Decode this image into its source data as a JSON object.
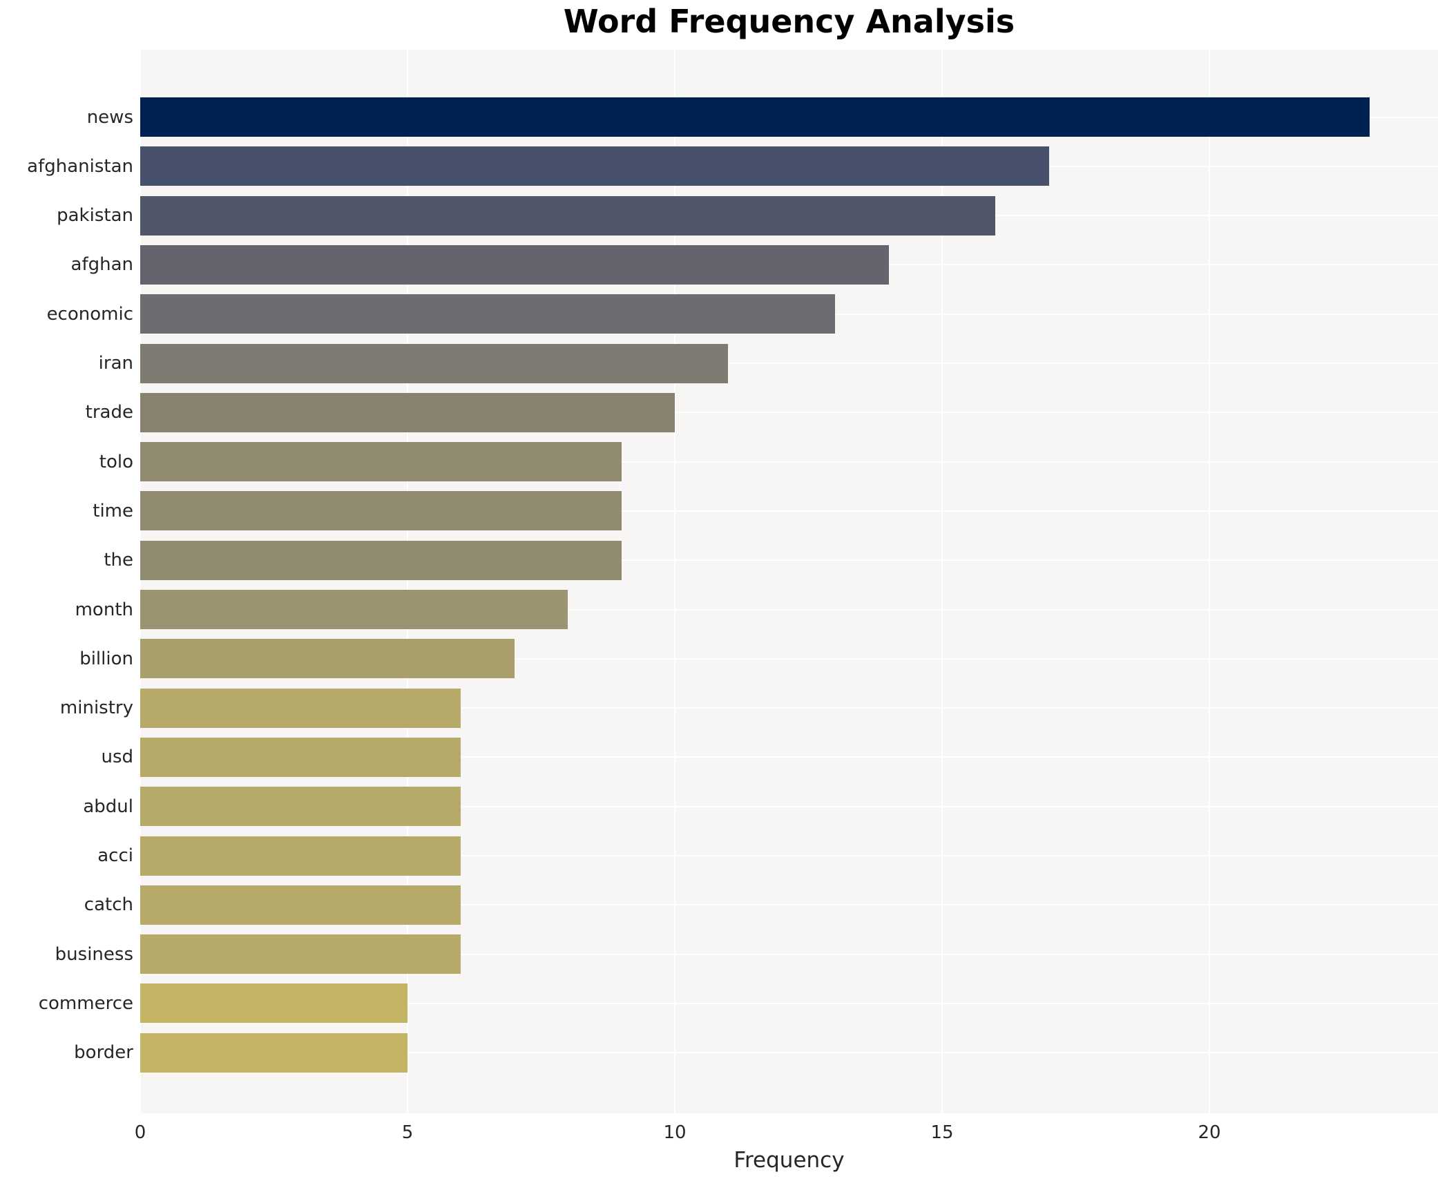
{
  "title": "Word Frequency Analysis",
  "xlabel": "Frequency",
  "colors": {
    "page_bg": "#ffffff",
    "plot_bg": "#f7f6f4",
    "grid": "#ffffff",
    "tick_text": "#262626",
    "title_text": "#000000"
  },
  "chart_data": {
    "type": "bar",
    "orientation": "horizontal",
    "title": "Word Frequency Analysis",
    "xlabel": "Frequency",
    "ylabel": "",
    "xlim": [
      0,
      24.3
    ],
    "x_ticks": [
      0,
      5,
      10,
      15,
      20
    ],
    "grid": true,
    "legend": false,
    "categories": [
      "news",
      "afghanistan",
      "pakistan",
      "afghan",
      "economic",
      "iran",
      "trade",
      "tolo",
      "time",
      "the",
      "month",
      "billion",
      "ministry",
      "usd",
      "abdul",
      "acci",
      "catch",
      "business",
      "commerce",
      "border"
    ],
    "values": [
      23,
      17,
      16,
      14,
      13,
      11,
      10,
      9,
      9,
      9,
      8,
      7,
      6,
      6,
      6,
      6,
      6,
      6,
      5,
      5
    ],
    "bar_colors": [
      "#002250",
      "#47516c",
      "#515669",
      "#63646e",
      "#6c6c71",
      "#7f7b72",
      "#888270",
      "#918b71",
      "#918b71",
      "#918b71",
      "#9c9470",
      "#a89f6c",
      "#b5aa68",
      "#b5aa68",
      "#b5aa68",
      "#b5aa68",
      "#b5aa68",
      "#b5aa68",
      "#c2b463",
      "#c2b463"
    ]
  }
}
